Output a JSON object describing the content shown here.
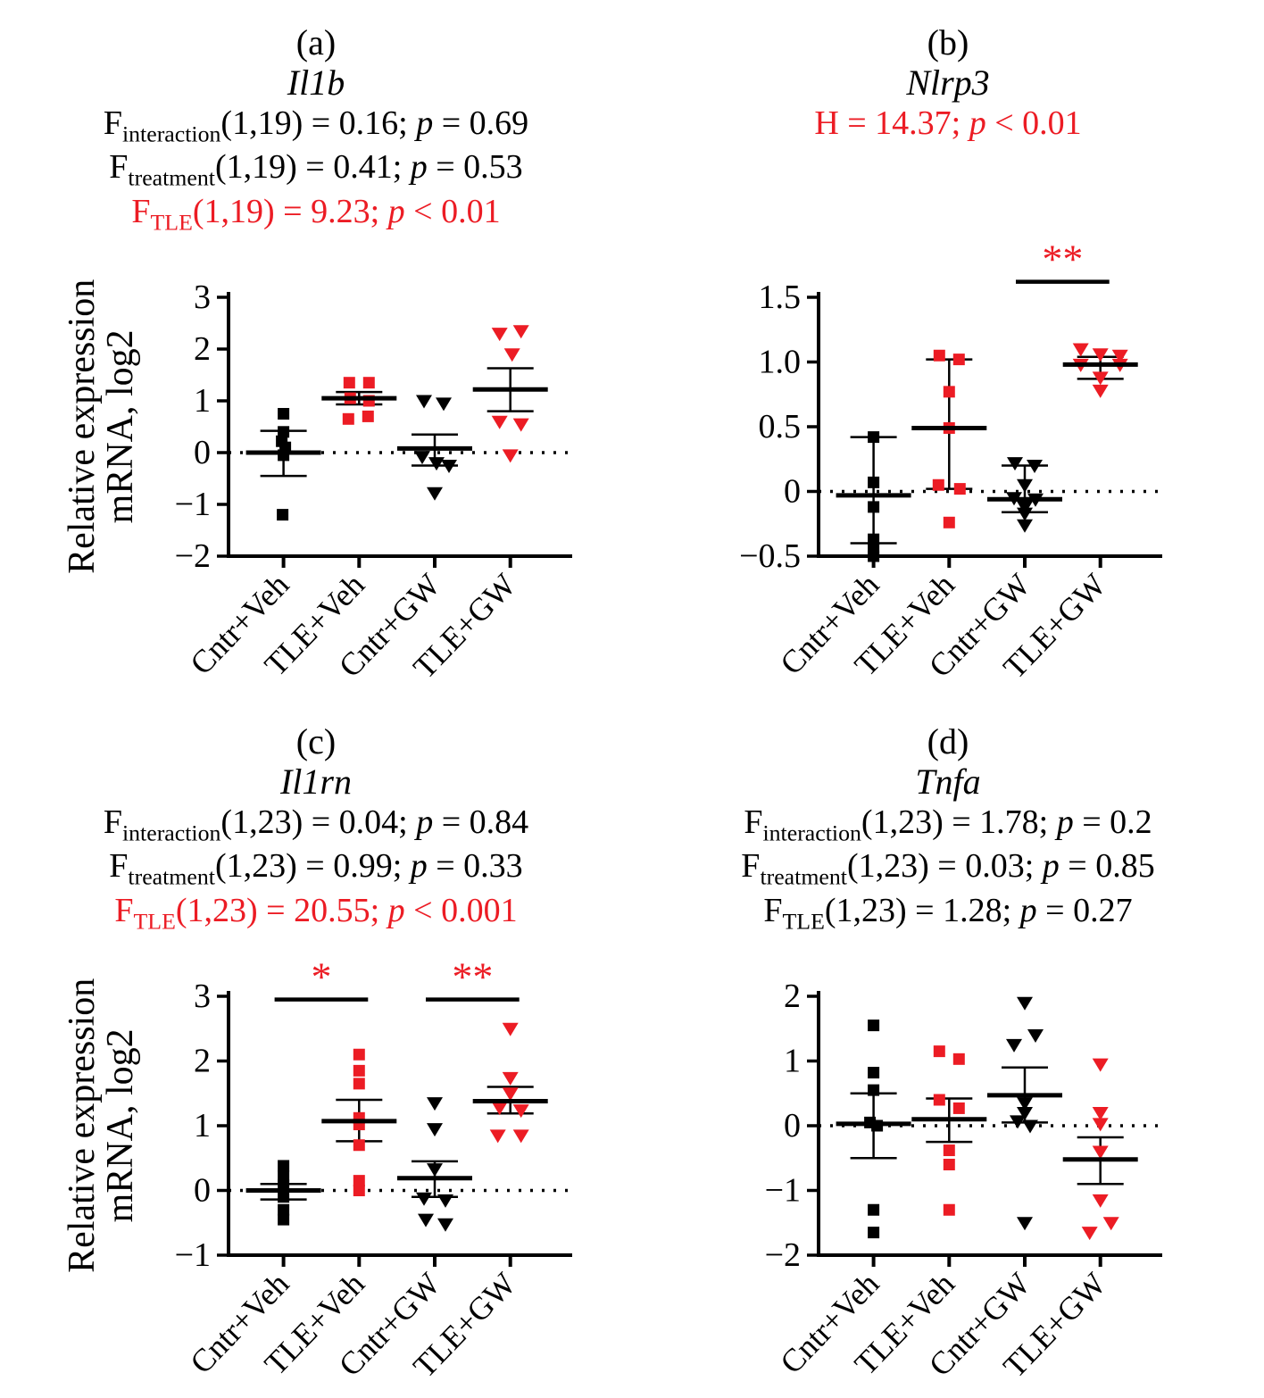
{
  "figure": {
    "ylabel_line1": "Relative expression",
    "ylabel_line2": "mRNA, log2"
  },
  "colors": {
    "black": "#000000",
    "red": "#EC1C24"
  },
  "chart_data": [
    {
      "type": "scatter",
      "panel": "(a)",
      "title": "Il1b",
      "stats": [
        {
          "color": "#000000",
          "segments": [
            {
              "t": "F"
            },
            {
              "t": "interaction",
              "sub": true
            },
            {
              "t": "(1,19) = 0.16; "
            },
            {
              "t": "p",
              "italic": true
            },
            {
              "t": " = 0.69"
            }
          ]
        },
        {
          "color": "#000000",
          "segments": [
            {
              "t": "F"
            },
            {
              "t": "treatment",
              "sub": true
            },
            {
              "t": "(1,19) = 0.41; "
            },
            {
              "t": "p",
              "italic": true
            },
            {
              "t": " = 0.53"
            }
          ]
        },
        {
          "color": "#EC1C24",
          "segments": [
            {
              "t": "F"
            },
            {
              "t": "TLE",
              "sub": true
            },
            {
              "t": "(1,19) = 9.23; "
            },
            {
              "t": "p",
              "italic": true
            },
            {
              "t": " < 0.01"
            }
          ]
        }
      ],
      "ylabel": "Relative expression mRNA, log2",
      "ylim": [
        -2,
        3
      ],
      "yticks": [
        {
          "v": 3,
          "label": "3"
        },
        {
          "v": 2,
          "label": "2"
        },
        {
          "v": 1,
          "label": "1"
        },
        {
          "v": 0,
          "label": "0"
        },
        {
          "v": -1,
          "label": "−1"
        },
        {
          "v": -2,
          "label": "−2"
        }
      ],
      "zero_line": true,
      "categories": [
        "Cntr+Veh",
        "TLE+Veh",
        "Cntr+GW",
        "TLE+GW"
      ],
      "groups": [
        {
          "name": "Cntr+Veh",
          "marker": "square",
          "color": "#000000",
          "values": [
            0.75,
            0.4,
            0.22,
            0.1,
            -0.05,
            -1.2
          ],
          "dx": [
            0,
            0,
            -2,
            2,
            0,
            -1
          ],
          "mean": 0.0,
          "err_low": -0.45,
          "err_high": 0.42
        },
        {
          "name": "TLE+Veh",
          "marker": "square",
          "color": "#EC1C24",
          "values": [
            1.35,
            1.35,
            1.05,
            1.0,
            0.65,
            0.7
          ],
          "dx": [
            -11,
            11,
            -10,
            11,
            -12,
            10
          ],
          "mean": 1.05,
          "err_low": 0.93,
          "err_high": 1.17
        },
        {
          "name": "Cntr+GW",
          "marker": "triangle-down",
          "color": "#000000",
          "values": [
            1.0,
            0.95,
            -0.08,
            -0.2,
            -0.25,
            -0.78
          ],
          "dx": [
            -12,
            10,
            -14,
            2,
            16,
            0
          ],
          "mean": 0.08,
          "err_low": -0.25,
          "err_high": 0.35
        },
        {
          "name": "TLE+GW",
          "marker": "triangle-down",
          "color": "#EC1C24",
          "values": [
            2.3,
            2.35,
            1.9,
            0.6,
            0.55,
            -0.05
          ],
          "dx": [
            -12,
            12,
            2,
            -12,
            12,
            0
          ],
          "mean": 1.22,
          "err_low": 0.8,
          "err_high": 1.63
        }
      ],
      "sig": []
    },
    {
      "type": "scatter",
      "panel": "(b)",
      "title": "Nlrp3",
      "stats": [
        {
          "color": "#EC1C24",
          "segments": [
            {
              "t": "H = 14.37; "
            },
            {
              "t": "p",
              "italic": true
            },
            {
              "t": " < 0.01"
            }
          ]
        }
      ],
      "ylabel": "",
      "ylim": [
        -0.5,
        1.5
      ],
      "yticks": [
        {
          "v": 1.5,
          "label": "1.5"
        },
        {
          "v": 1,
          "label": "1.0"
        },
        {
          "v": 0.5,
          "label": "0.5"
        },
        {
          "v": 0,
          "label": "0"
        },
        {
          "v": -0.5,
          "label": "−0.5"
        }
      ],
      "zero_line": true,
      "categories": [
        "Cntr+Veh",
        "TLE+Veh",
        "Cntr+GW",
        "TLE+GW"
      ],
      "groups": [
        {
          "name": "Cntr+Veh",
          "marker": "square",
          "color": "#000000",
          "values": [
            0.42,
            0.07,
            -0.12,
            -0.37,
            -0.45,
            -0.5
          ],
          "dx": [
            0,
            0,
            0,
            0,
            0,
            0
          ],
          "mean": -0.03,
          "err_low": -0.4,
          "err_high": 0.42
        },
        {
          "name": "TLE+Veh",
          "marker": "square",
          "color": "#EC1C24",
          "values": [
            1.05,
            1.02,
            0.77,
            0.49,
            0.05,
            0.02,
            -0.24
          ],
          "dx": [
            -11,
            11,
            0,
            0,
            -12,
            12,
            0
          ],
          "mean": 0.49,
          "err_low": 0.02,
          "err_high": 1.02
        },
        {
          "name": "Cntr+GW",
          "marker": "triangle-down",
          "color": "#000000",
          "values": [
            0.22,
            0.2,
            0.05,
            -0.05,
            -0.06,
            -0.12,
            -0.17,
            -0.26
          ],
          "dx": [
            -11,
            11,
            0,
            -12,
            12,
            0,
            0,
            0
          ],
          "mean": -0.06,
          "err_low": -0.16,
          "err_high": 0.2
        },
        {
          "name": "TLE+GW",
          "marker": "triangle-down",
          "color": "#EC1C24",
          "values": [
            1.1,
            1.06,
            1.05,
            0.98,
            0.98,
            0.88,
            0.78
          ],
          "dx": [
            -22,
            0,
            22,
            -22,
            22,
            0,
            0
          ],
          "mean": 0.98,
          "err_low": 0.87,
          "err_high": 1.04
        }
      ],
      "sig": [
        {
          "between": [
            2,
            3
          ],
          "label": "**",
          "y": 1.62
        }
      ]
    },
    {
      "type": "scatter",
      "panel": "(c)",
      "title": "Il1rn",
      "stats": [
        {
          "color": "#000000",
          "segments": [
            {
              "t": "F"
            },
            {
              "t": "interaction",
              "sub": true
            },
            {
              "t": "(1,23) = 0.04; "
            },
            {
              "t": "p",
              "italic": true
            },
            {
              "t": " = 0.84"
            }
          ]
        },
        {
          "color": "#000000",
          "segments": [
            {
              "t": "F"
            },
            {
              "t": "treatment",
              "sub": true
            },
            {
              "t": "(1,23) = 0.99; "
            },
            {
              "t": "p",
              "italic": true
            },
            {
              "t": " = 0.33"
            }
          ]
        },
        {
          "color": "#EC1C24",
          "segments": [
            {
              "t": "F"
            },
            {
              "t": "TLE",
              "sub": true
            },
            {
              "t": "(1,23) = 20.55; "
            },
            {
              "t": "p",
              "italic": true
            },
            {
              "t": " < 0.001"
            }
          ]
        }
      ],
      "ylabel": "Relative expression mRNA, log2",
      "ylim": [
        -1,
        3
      ],
      "yticks": [
        {
          "v": 3,
          "label": "3"
        },
        {
          "v": 2,
          "label": "2"
        },
        {
          "v": 1,
          "label": "1"
        },
        {
          "v": 0,
          "label": "0"
        },
        {
          "v": -1,
          "label": "−1"
        }
      ],
      "zero_line": true,
      "categories": [
        "Cntr+Veh",
        "TLE+Veh",
        "Cntr+GW",
        "TLE+GW"
      ],
      "groups": [
        {
          "name": "Cntr+Veh",
          "marker": "square",
          "color": "#000000",
          "values": [
            0.38,
            0.22,
            0.08,
            -0.1,
            -0.3,
            -0.45
          ],
          "dx": [
            0,
            0,
            0,
            0,
            0,
            0
          ],
          "mean": 0.0,
          "err_low": -0.14,
          "err_high": 0.1
        },
        {
          "name": "TLE+Veh",
          "marker": "square",
          "color": "#EC1C24",
          "values": [
            2.1,
            1.85,
            1.65,
            1.12,
            1.02,
            0.7,
            0.15,
            0.0
          ],
          "dx": [
            0,
            0,
            0,
            0,
            0,
            0,
            0,
            0
          ],
          "mean": 1.07,
          "err_low": 0.76,
          "err_high": 1.4
        },
        {
          "name": "Cntr+GW",
          "marker": "triangle-down",
          "color": "#000000",
          "values": [
            1.35,
            0.95,
            0.33,
            -0.12,
            -0.15,
            -0.45,
            -0.52
          ],
          "dx": [
            0,
            0,
            0,
            -12,
            12,
            -10,
            12
          ],
          "mean": 0.19,
          "err_low": -0.1,
          "err_high": 0.45
        },
        {
          "name": "TLE+GW",
          "marker": "triangle-down",
          "color": "#EC1C24",
          "values": [
            2.5,
            1.74,
            1.5,
            1.28,
            1.24,
            0.85,
            0.85
          ],
          "dx": [
            0,
            0,
            0,
            -12,
            12,
            -14,
            12
          ],
          "mean": 1.38,
          "err_low": 1.19,
          "err_high": 1.6
        }
      ],
      "sig": [
        {
          "between": [
            0,
            1
          ],
          "label": "*",
          "y": 2.95
        },
        {
          "between": [
            2,
            3
          ],
          "label": "**",
          "y": 2.95
        }
      ]
    },
    {
      "type": "scatter",
      "panel": "(d)",
      "title": "Tnfa",
      "stats": [
        {
          "color": "#000000",
          "segments": [
            {
              "t": "F"
            },
            {
              "t": "interaction",
              "sub": true
            },
            {
              "t": "(1,23) = 1.78; "
            },
            {
              "t": "p",
              "italic": true
            },
            {
              "t": " = 0.2"
            }
          ]
        },
        {
          "color": "#000000",
          "segments": [
            {
              "t": "F"
            },
            {
              "t": "treatment",
              "sub": true
            },
            {
              "t": "(1,23) = 0.03; "
            },
            {
              "t": "p",
              "italic": true
            },
            {
              "t": " = 0.85"
            }
          ]
        },
        {
          "color": "#000000",
          "segments": [
            {
              "t": "F"
            },
            {
              "t": "TLE",
              "sub": true
            },
            {
              "t": "(1,23) = 1.28; "
            },
            {
              "t": "p",
              "italic": true
            },
            {
              "t": " = 0.27"
            }
          ]
        }
      ],
      "ylabel": "",
      "ylim": [
        -2,
        2
      ],
      "yticks": [
        {
          "v": 2,
          "label": "2"
        },
        {
          "v": 1,
          "label": "1"
        },
        {
          "v": 0,
          "label": "0"
        },
        {
          "v": -1,
          "label": "−1"
        },
        {
          "v": -2,
          "label": "−2"
        }
      ],
      "zero_line": true,
      "categories": [
        "Cntr+Veh",
        "TLE+Veh",
        "Cntr+GW",
        "TLE+GW"
      ],
      "groups": [
        {
          "name": "Cntr+Veh",
          "marker": "square",
          "color": "#000000",
          "values": [
            1.55,
            0.82,
            0.55,
            0.05,
            0.0,
            -1.3,
            -1.65
          ],
          "dx": [
            0,
            0,
            0,
            -4,
            4,
            0,
            0
          ],
          "mean": 0.03,
          "err_low": -0.5,
          "err_high": 0.5
        },
        {
          "name": "TLE+Veh",
          "marker": "square",
          "color": "#EC1C24",
          "values": [
            1.15,
            1.03,
            0.4,
            0.27,
            -0.38,
            -0.6,
            -1.3
          ],
          "dx": [
            -11,
            11,
            -11,
            11,
            0,
            0,
            0
          ],
          "mean": 0.1,
          "err_low": -0.25,
          "err_high": 0.42
        },
        {
          "name": "Cntr+GW",
          "marker": "triangle-down",
          "color": "#000000",
          "values": [
            1.9,
            1.4,
            1.25,
            0.35,
            0.2,
            0.07,
            0.0,
            -1.5
          ],
          "dx": [
            0,
            12,
            -12,
            0,
            0,
            -8,
            6,
            0
          ],
          "mean": 0.47,
          "err_low": 0.05,
          "err_high": 0.9
        },
        {
          "name": "TLE+GW",
          "marker": "triangle-down",
          "color": "#EC1C24",
          "values": [
            0.95,
            0.2,
            0.03,
            -0.4,
            -1.15,
            -1.5,
            -1.65
          ],
          "dx": [
            0,
            0,
            0,
            0,
            0,
            12,
            -12
          ],
          "mean": -0.52,
          "err_low": -0.9,
          "err_high": -0.18
        }
      ],
      "sig": []
    }
  ]
}
